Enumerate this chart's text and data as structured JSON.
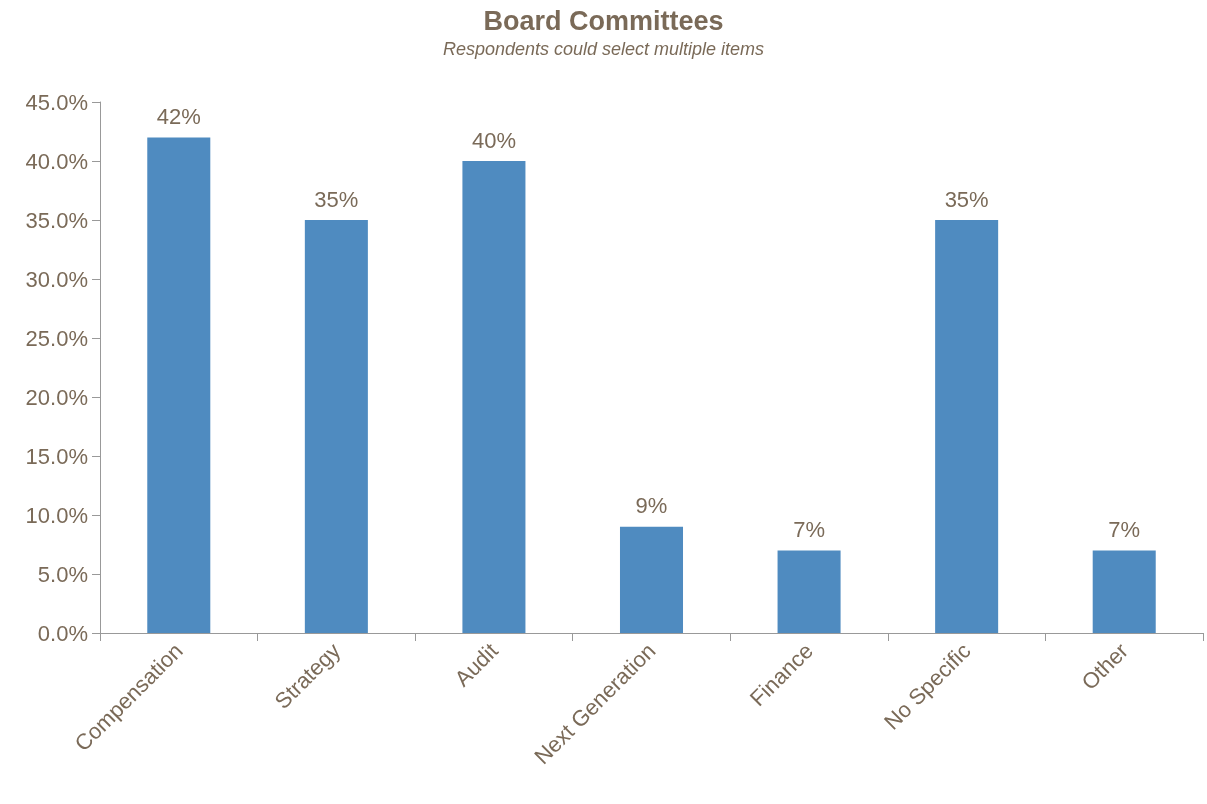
{
  "chart_data": {
    "type": "bar",
    "title": "Board Committees",
    "subtitle": "Respondents could select multiple items",
    "categories": [
      "Compensation",
      "Strategy",
      "Audit",
      "Next Generation",
      "Finance",
      "No Specific",
      "Other"
    ],
    "values": [
      42,
      35,
      40,
      9,
      7,
      35,
      7
    ],
    "value_labels": [
      "42%",
      "35%",
      "40%",
      "9%",
      "7%",
      "35%",
      "7%"
    ],
    "color": "#4f8bc0",
    "ylim": [
      0,
      45
    ],
    "yticks": [
      {
        "value": 0,
        "label": "0.0%"
      },
      {
        "value": 5,
        "label": "5.0%"
      },
      {
        "value": 10,
        "label": "10.0%"
      },
      {
        "value": 15,
        "label": "15.0%"
      },
      {
        "value": 20,
        "label": "20.0%"
      },
      {
        "value": 25,
        "label": "25.0%"
      },
      {
        "value": 30,
        "label": "30.0%"
      },
      {
        "value": 35,
        "label": "35.0%"
      },
      {
        "value": 40,
        "label": "40.0%"
      },
      {
        "value": 45,
        "label": "45.0%"
      }
    ],
    "grid": false
  }
}
